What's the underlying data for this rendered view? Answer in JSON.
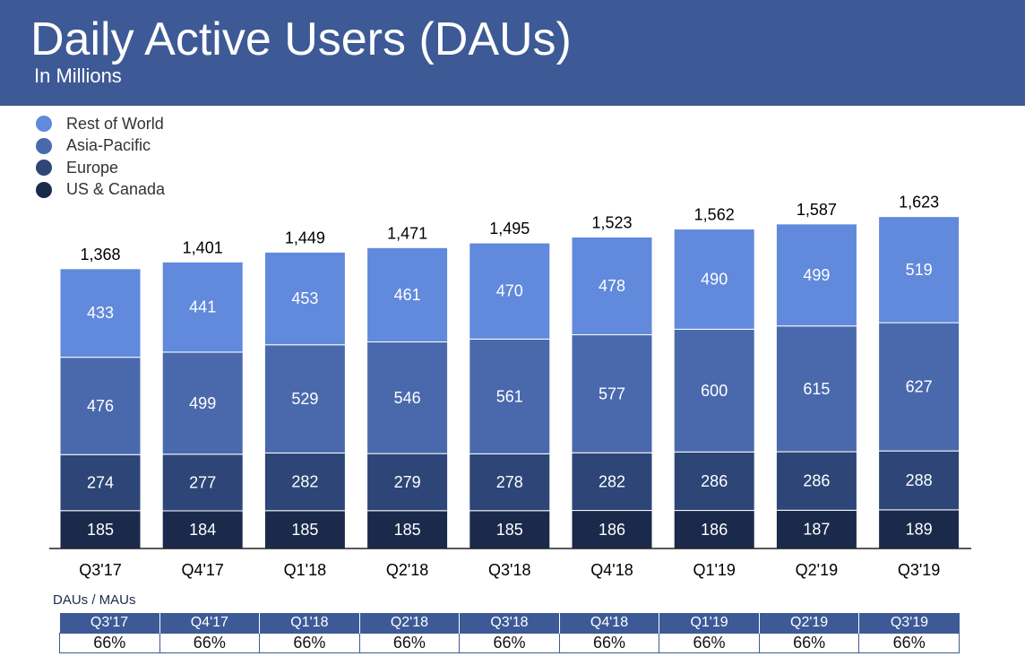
{
  "header": {
    "title": "Daily Active Users (DAUs)",
    "subtitle": "In Millions"
  },
  "chart_data": {
    "type": "bar",
    "stacked": true,
    "categories": [
      "Q3'17",
      "Q4'17",
      "Q1'18",
      "Q2'18",
      "Q3'18",
      "Q4'18",
      "Q1'19",
      "Q2'19",
      "Q3'19"
    ],
    "series": [
      {
        "name": "US & Canada",
        "color": "#1b2a4b",
        "values": [
          185,
          184,
          185,
          185,
          185,
          186,
          186,
          187,
          189
        ]
      },
      {
        "name": "Europe",
        "color": "#2d4677",
        "values": [
          274,
          277,
          282,
          279,
          278,
          282,
          286,
          286,
          288
        ]
      },
      {
        "name": "Asia-Pacific",
        "color": "#4a69ad",
        "values": [
          476,
          499,
          529,
          546,
          561,
          577,
          600,
          615,
          627
        ]
      },
      {
        "name": "Rest of World",
        "color": "#6189dc",
        "values": [
          433,
          441,
          453,
          461,
          470,
          478,
          490,
          499,
          519
        ]
      }
    ],
    "totals": [
      "1,368",
      "1,401",
      "1,449",
      "1,471",
      "1,495",
      "1,523",
      "1,562",
      "1,587",
      "1,623"
    ],
    "legend_placement": "top-left",
    "grid": false
  },
  "ratio": {
    "label": "DAUs / MAUs",
    "quarters": [
      "Q3'17",
      "Q4'17",
      "Q1'18",
      "Q2'18",
      "Q3'18",
      "Q4'18",
      "Q1'19",
      "Q2'19",
      "Q3'19"
    ],
    "values": [
      "66%",
      "66%",
      "66%",
      "66%",
      "66%",
      "66%",
      "66%",
      "66%",
      "66%"
    ]
  }
}
